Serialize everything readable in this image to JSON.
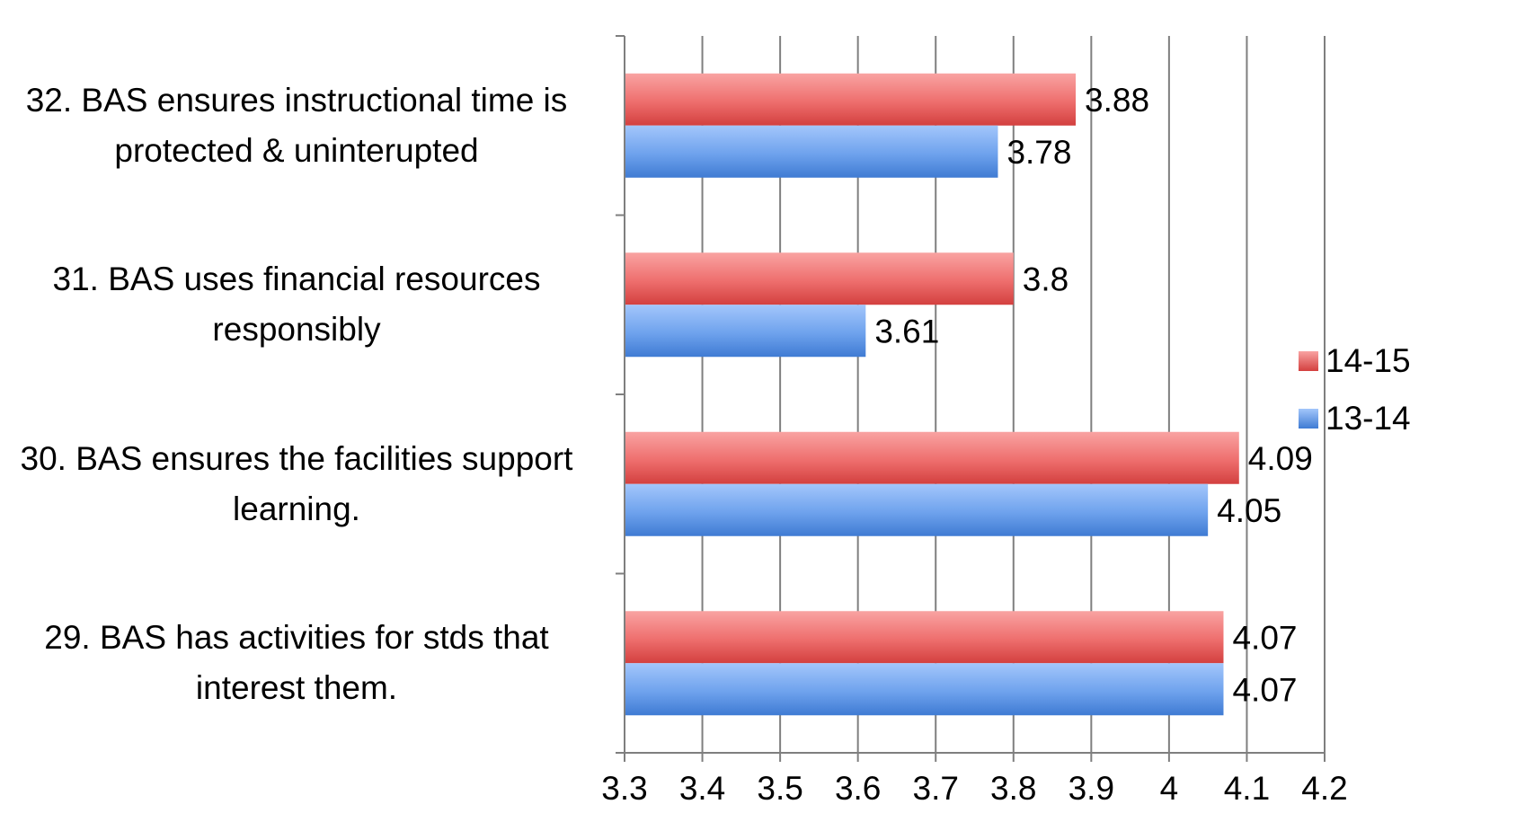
{
  "chart_data": {
    "type": "bar",
    "orientation": "horizontal",
    "title": "",
    "xlabel": "",
    "ylabel": "",
    "categories": [
      "29. BAS has activities for stds that interest them.",
      "30. BAS ensures the facilities support learning.",
      "31. BAS uses financial resources responsibly",
      "32. BAS ensures instructional time is protected & uninterupted"
    ],
    "category_lines": [
      [
        "29. BAS has activities for stds that",
        "interest them."
      ],
      [
        "30. BAS ensures the facilities support",
        "learning."
      ],
      [
        "31. BAS uses financial resources",
        "responsibly"
      ],
      [
        "32. BAS ensures instructional time is",
        "protected & uninterupted"
      ]
    ],
    "series": [
      {
        "name": "14-15",
        "values": [
          4.07,
          4.09,
          3.8,
          3.88
        ],
        "labels": [
          "4.07",
          "4.09",
          "3.8",
          "3.88"
        ],
        "color": "#e8595a"
      },
      {
        "name": "13-14",
        "values": [
          4.07,
          4.05,
          3.61,
          3.78
        ],
        "labels": [
          "4.07",
          "4.05",
          "3.61",
          "3.78"
        ],
        "color": "#5a90e0"
      }
    ],
    "xlim": [
      3.3,
      4.2
    ],
    "xticks": [
      3.3,
      3.4,
      3.5,
      3.6,
      3.7,
      3.8,
      3.9,
      4.0,
      4.1,
      4.2
    ],
    "xtick_labels": [
      "3.3",
      "3.4",
      "3.5",
      "3.6",
      "3.7",
      "3.8",
      "3.9",
      "4",
      "4.1",
      "4.2"
    ],
    "grid": true,
    "legend": "right"
  }
}
